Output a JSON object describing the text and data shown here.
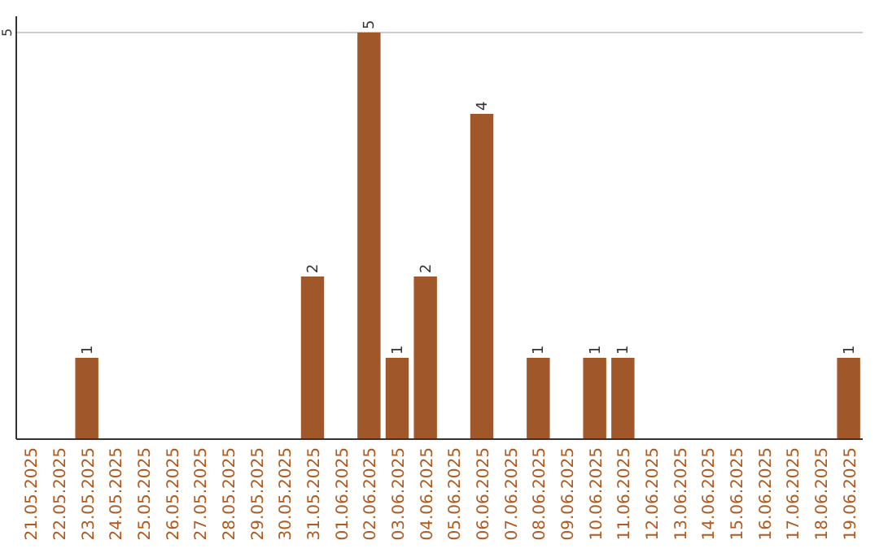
{
  "chart_data": {
    "type": "bar",
    "categories": [
      "21.05.2025",
      "22.05.2025",
      "23.05.2025",
      "24.05.2025",
      "25.05.2025",
      "26.05.2025",
      "27.05.2025",
      "28.05.2025",
      "29.05.2025",
      "30.05.2025",
      "31.05.2025",
      "01.06.2025",
      "02.06.2025",
      "03.06.2025",
      "04.06.2025",
      "05.06.2025",
      "06.06.2025",
      "07.06.2025",
      "08.06.2025",
      "09.06.2025",
      "10.06.2025",
      "11.06.2025",
      "12.06.2025",
      "13.06.2025",
      "14.06.2025",
      "15.06.2025",
      "16.06.2025",
      "17.06.2025",
      "18.06.2025",
      "19.06.2025"
    ],
    "values": [
      0,
      0,
      1,
      0,
      0,
      0,
      0,
      0,
      0,
      0,
      2,
      0,
      5,
      1,
      2,
      0,
      4,
      0,
      1,
      0,
      1,
      1,
      0,
      0,
      0,
      0,
      0,
      0,
      0,
      1
    ],
    "value_labels": [
      null,
      null,
      "1",
      null,
      null,
      null,
      null,
      null,
      null,
      null,
      "2",
      null,
      "5",
      "1",
      "2",
      null,
      "4",
      null,
      "1",
      null,
      "1",
      "1",
      null,
      null,
      null,
      null,
      null,
      null,
      null,
      "1"
    ],
    "color": "#a0582a",
    "ylim": [
      0,
      5
    ],
    "yticks": [
      5
    ],
    "ref_lines": [
      {
        "axis": "y",
        "value": 5,
        "color": "#cccccc"
      }
    ]
  }
}
